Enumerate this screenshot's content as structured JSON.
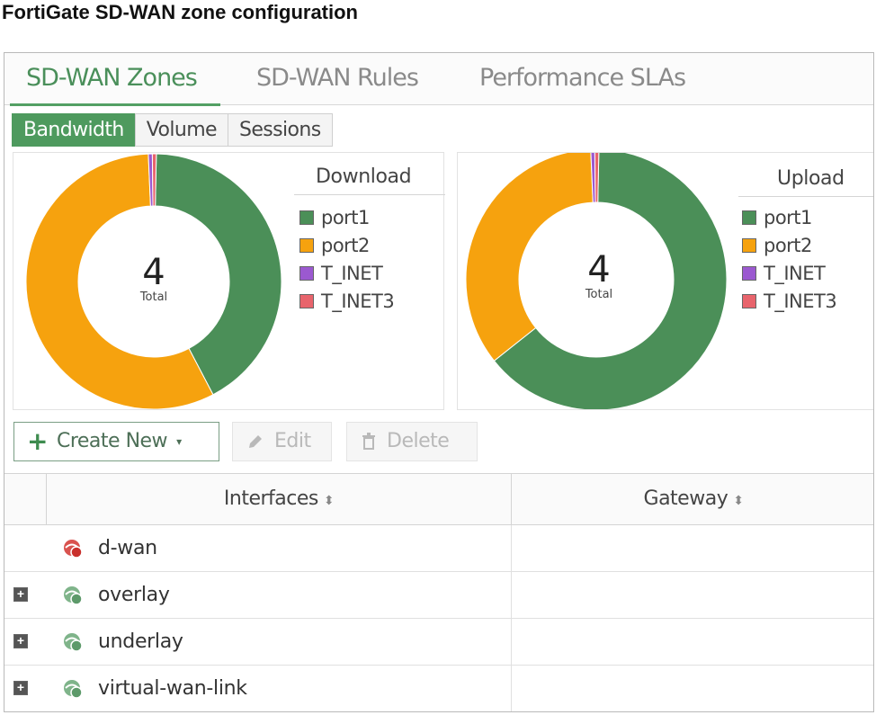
{
  "page_title": "FortiGate SD-WAN zone configuration",
  "tabs": [
    {
      "label": "SD-WAN Zones",
      "active": true
    },
    {
      "label": "SD-WAN Rules",
      "active": false
    },
    {
      "label": "Performance SLAs",
      "active": false
    }
  ],
  "view_toggle": [
    {
      "label": "Bandwidth",
      "active": true
    },
    {
      "label": "Volume",
      "active": false
    },
    {
      "label": "Sessions",
      "active": false
    }
  ],
  "download": {
    "title": "Download",
    "total_value": "4",
    "total_label": "Total",
    "legend": [
      {
        "label": "port1",
        "color": "#4b8f58"
      },
      {
        "label": "port2",
        "color": "#f6a20e"
      },
      {
        "label": "T_INET",
        "color": "#9b59d0"
      },
      {
        "label": "T_INET3",
        "color": "#e8646c"
      }
    ],
    "shares": [
      0.42,
      0.57,
      0.005,
      0.005
    ]
  },
  "upload": {
    "title": "Upload",
    "total_value": "4",
    "total_label": "Total",
    "legend": [
      {
        "label": "port1",
        "color": "#4b8f58"
      },
      {
        "label": "port2",
        "color": "#f6a20e"
      },
      {
        "label": "T_INET",
        "color": "#9b59d0"
      },
      {
        "label": "T_INET3",
        "color": "#e8646c"
      }
    ],
    "shares": [
      0.64,
      0.35,
      0.005,
      0.005
    ]
  },
  "toolbar": {
    "create_label": "Create New",
    "edit_label": "Edit",
    "delete_label": "Delete"
  },
  "table": {
    "columns": [
      "Interfaces",
      "Gateway"
    ],
    "rows": [
      {
        "name": "d-wan",
        "expandable": false,
        "icon": "zone-warning-icon",
        "gateway": ""
      },
      {
        "name": "overlay",
        "expandable": true,
        "icon": "zone-icon",
        "gateway": ""
      },
      {
        "name": "underlay",
        "expandable": true,
        "icon": "zone-icon",
        "gateway": ""
      },
      {
        "name": "virtual-wan-link",
        "expandable": true,
        "icon": "zone-icon",
        "gateway": ""
      }
    ]
  }
}
